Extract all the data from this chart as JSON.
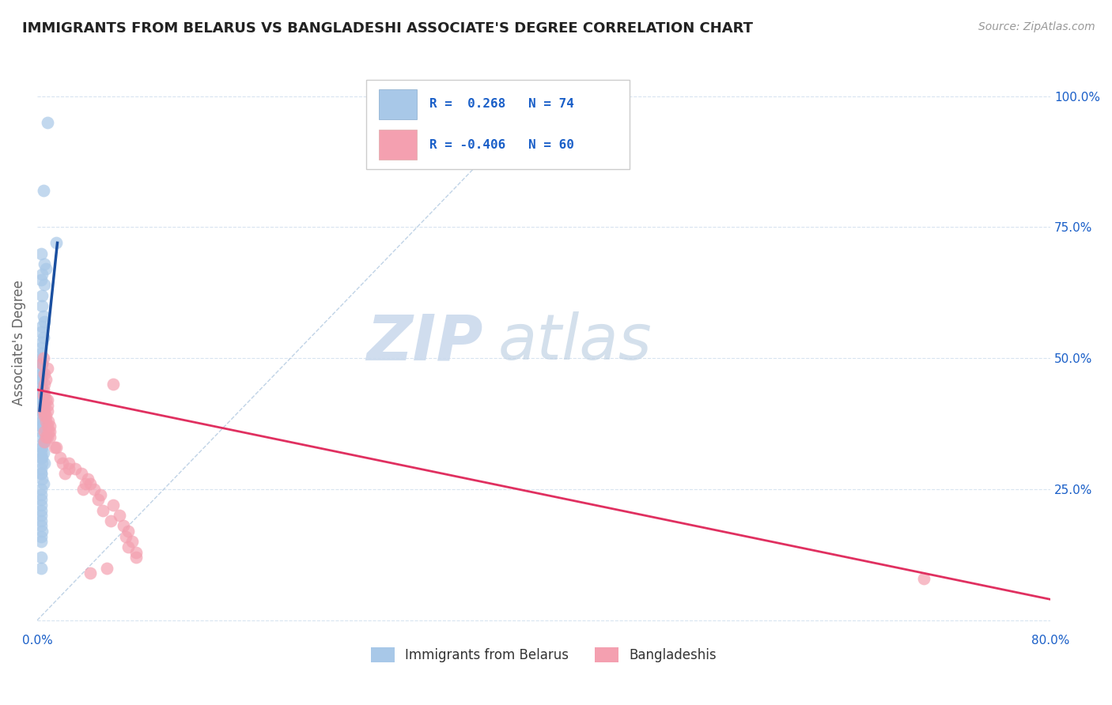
{
  "title": "IMMIGRANTS FROM BELARUS VS BANGLADESHI ASSOCIATE'S DEGREE CORRELATION CHART",
  "source": "Source: ZipAtlas.com",
  "ylabel": "Associate's Degree",
  "x_range": [
    0.0,
    0.8
  ],
  "y_range": [
    -0.02,
    1.08
  ],
  "y_ticks": [
    0.0,
    0.25,
    0.5,
    0.75,
    1.0
  ],
  "y_tick_labels": [
    "",
    "25.0%",
    "50.0%",
    "75.0%",
    "100.0%"
  ],
  "x_tick_left": "0.0%",
  "x_tick_right": "80.0%",
  "legend_r1": "R =  0.268",
  "legend_n1": "N = 74",
  "legend_r2": "R = -0.406",
  "legend_n2": "N = 60",
  "blue_color": "#a8c8e8",
  "pink_color": "#f4a0b0",
  "blue_line_color": "#1a4fa0",
  "pink_line_color": "#e03060",
  "legend_text_color": "#1a5fc8",
  "blue_scatter_x": [
    0.008,
    0.005,
    0.015,
    0.003,
    0.006,
    0.007,
    0.004,
    0.003,
    0.006,
    0.004,
    0.004,
    0.005,
    0.006,
    0.004,
    0.003,
    0.005,
    0.004,
    0.003,
    0.003,
    0.003,
    0.004,
    0.003,
    0.003,
    0.003,
    0.004,
    0.003,
    0.003,
    0.003,
    0.003,
    0.004,
    0.004,
    0.004,
    0.003,
    0.003,
    0.003,
    0.004,
    0.003,
    0.003,
    0.003,
    0.003,
    0.004,
    0.003,
    0.003,
    0.003,
    0.003,
    0.007,
    0.005,
    0.005,
    0.004,
    0.003,
    0.003,
    0.005,
    0.004,
    0.003,
    0.004,
    0.006,
    0.003,
    0.003,
    0.003,
    0.004,
    0.005,
    0.003,
    0.003,
    0.003,
    0.003,
    0.003,
    0.003,
    0.003,
    0.003,
    0.004,
    0.003,
    0.003,
    0.003,
    0.003
  ],
  "blue_scatter_y": [
    0.95,
    0.82,
    0.72,
    0.7,
    0.68,
    0.67,
    0.66,
    0.65,
    0.64,
    0.62,
    0.6,
    0.58,
    0.57,
    0.56,
    0.55,
    0.54,
    0.53,
    0.52,
    0.51,
    0.5,
    0.49,
    0.49,
    0.48,
    0.47,
    0.47,
    0.46,
    0.46,
    0.45,
    0.44,
    0.44,
    0.43,
    0.43,
    0.42,
    0.42,
    0.41,
    0.41,
    0.4,
    0.4,
    0.39,
    0.38,
    0.38,
    0.37,
    0.37,
    0.36,
    0.35,
    0.35,
    0.34,
    0.34,
    0.33,
    0.33,
    0.32,
    0.32,
    0.31,
    0.31,
    0.3,
    0.3,
    0.29,
    0.28,
    0.28,
    0.27,
    0.26,
    0.25,
    0.24,
    0.23,
    0.22,
    0.21,
    0.2,
    0.19,
    0.18,
    0.17,
    0.16,
    0.15,
    0.12,
    0.1
  ],
  "pink_scatter_x": [
    0.005,
    0.004,
    0.008,
    0.006,
    0.007,
    0.006,
    0.005,
    0.006,
    0.005,
    0.008,
    0.007,
    0.008,
    0.006,
    0.006,
    0.008,
    0.005,
    0.007,
    0.006,
    0.009,
    0.007,
    0.01,
    0.008,
    0.01,
    0.006,
    0.007,
    0.009,
    0.008,
    0.01,
    0.006,
    0.015,
    0.014,
    0.018,
    0.02,
    0.025,
    0.03,
    0.025,
    0.022,
    0.035,
    0.04,
    0.038,
    0.042,
    0.036,
    0.045,
    0.05,
    0.048,
    0.06,
    0.052,
    0.065,
    0.058,
    0.068,
    0.072,
    0.07,
    0.075,
    0.072,
    0.078,
    0.078,
    0.06,
    0.055,
    0.042,
    0.7
  ],
  "pink_scatter_y": [
    0.5,
    0.49,
    0.48,
    0.47,
    0.46,
    0.45,
    0.44,
    0.43,
    0.43,
    0.42,
    0.42,
    0.41,
    0.41,
    0.4,
    0.4,
    0.4,
    0.39,
    0.39,
    0.38,
    0.38,
    0.37,
    0.37,
    0.36,
    0.36,
    0.35,
    0.36,
    0.35,
    0.35,
    0.34,
    0.33,
    0.33,
    0.31,
    0.3,
    0.3,
    0.29,
    0.29,
    0.28,
    0.28,
    0.27,
    0.26,
    0.26,
    0.25,
    0.25,
    0.24,
    0.23,
    0.22,
    0.21,
    0.2,
    0.19,
    0.18,
    0.17,
    0.16,
    0.15,
    0.14,
    0.13,
    0.12,
    0.45,
    0.1,
    0.09,
    0.08
  ],
  "blue_line_x": [
    0.002,
    0.016
  ],
  "blue_line_y": [
    0.4,
    0.72
  ],
  "pink_line_x": [
    0.0,
    0.8
  ],
  "pink_line_y": [
    0.44,
    0.04
  ],
  "diag_line_x": [
    0.0,
    0.4
  ],
  "diag_line_y": [
    0.0,
    1.0
  ]
}
